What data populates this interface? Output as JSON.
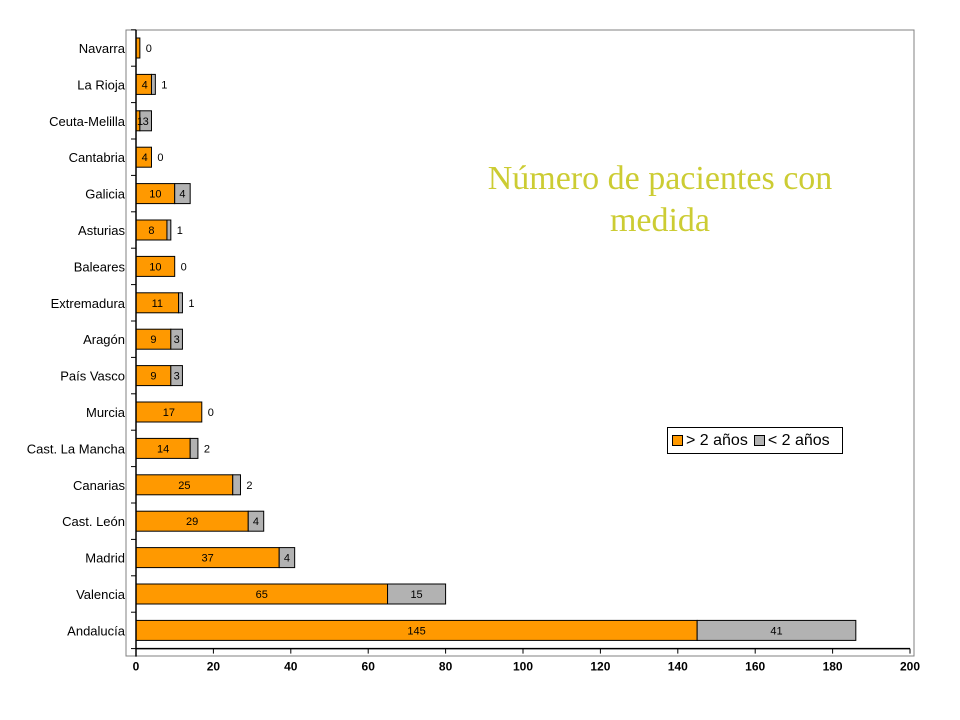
{
  "colors": {
    "older": "#FF9900",
    "newer": "#B2B2B2",
    "title": "#CCCC33",
    "plot_border": "#808080"
  },
  "chart_data": {
    "type": "bar",
    "orientation": "horizontal",
    "stacked": true,
    "title": "Número de pacientes con medida",
    "title_lines": [
      "Número de pacientes con",
      "medida"
    ],
    "xlabel": "",
    "ylabel": "",
    "xlim": [
      0,
      200
    ],
    "x_ticks": [
      "0",
      "20",
      "40",
      "60",
      "80",
      "100",
      "120",
      "140",
      "160",
      "180",
      "200"
    ],
    "grid": false,
    "legend_position": "right",
    "categories": [
      "Navarra",
      "La Rioja",
      "Ceuta-Melilla",
      "Cantabria",
      "Galicia",
      "Asturias",
      "Baleares",
      "Extremadura",
      "Aragón",
      "País Vasco",
      "Murcia",
      "Cast. La Mancha",
      "Canarias",
      "Cast. León",
      "Madrid",
      "Valencia",
      "Andalucía"
    ],
    "series": [
      {
        "name": "> 2 años",
        "values": [
          1,
          4,
          1,
          4,
          10,
          8,
          10,
          11,
          9,
          9,
          17,
          14,
          25,
          29,
          37,
          65,
          145
        ]
      },
      {
        "name": "< 2 años",
        "values": [
          0,
          1,
          3,
          0,
          4,
          1,
          0,
          1,
          3,
          3,
          0,
          2,
          2,
          4,
          4,
          15,
          41
        ]
      }
    ],
    "data_labels": {
      "older": [
        "",
        "4",
        "1",
        "4",
        "10",
        "8",
        "10",
        "11",
        "9",
        "9",
        "17",
        "14",
        "25",
        "29",
        "37",
        "65",
        "145"
      ],
      "newer": [
        "0",
        "1",
        "3",
        "0",
        "4",
        "1",
        "0",
        "1",
        "3",
        "3",
        "0",
        "2",
        "2",
        "4",
        "4",
        "15",
        "41"
      ]
    }
  }
}
